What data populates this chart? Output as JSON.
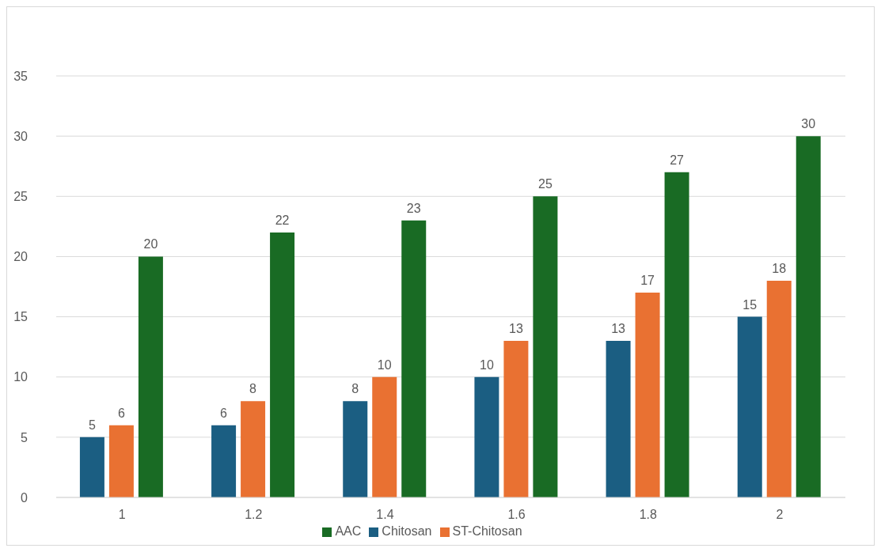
{
  "chart_data": {
    "type": "bar",
    "categories": [
      "1",
      "1.2",
      "1.4",
      "1.6",
      "1.8",
      "2"
    ],
    "series": [
      {
        "name": "Chitosan",
        "color": "#1b5e82",
        "values": [
          5,
          6,
          8,
          10,
          13,
          15
        ]
      },
      {
        "name": "ST-Chitosan",
        "color": "#e97132",
        "values": [
          6,
          8,
          10,
          13,
          17,
          18
        ]
      },
      {
        "name": "AAC",
        "color": "#196b24",
        "values": [
          20,
          22,
          23,
          25,
          27,
          30
        ]
      }
    ],
    "ylim": [
      0,
      35
    ],
    "yticks": [
      0,
      5,
      10,
      15,
      20,
      25,
      30,
      35
    ],
    "grid": "y",
    "legend": "bottom",
    "data_labels": true
  }
}
